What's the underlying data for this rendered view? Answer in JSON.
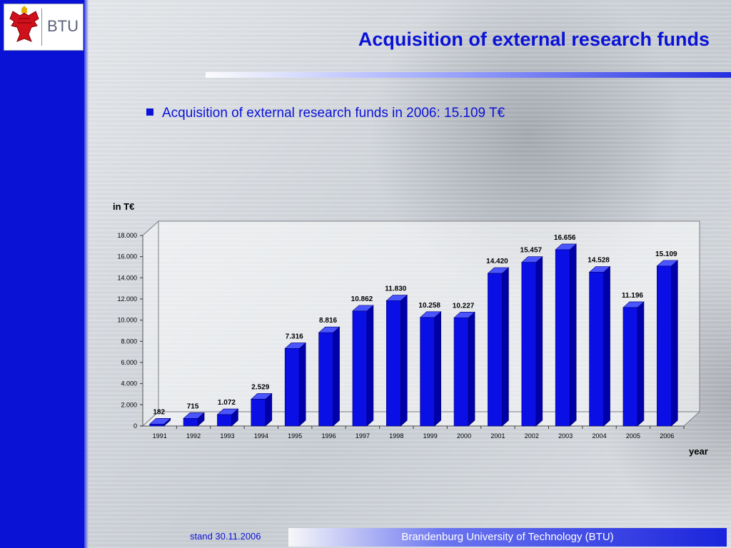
{
  "slide": {
    "title": "Acquisition of external research funds",
    "bullet": "Acquisition of external research funds in 2006: 15.109 T€",
    "logo_text": "BTU",
    "footer_date": "stand 30.11.2006",
    "footer_text": "Brandenburg University of Technology (BTU)"
  },
  "colors": {
    "accent": "#0a12d6",
    "bar_front": "#0a0fe6",
    "bar_side": "#0000a8",
    "bar_top": "#4a55ff"
  },
  "icons": {
    "logo": "brandenburg-eagle-icon",
    "bullet": "square-bullet-icon"
  },
  "chart_data": {
    "type": "bar",
    "ylabel": "in T€",
    "xlabel": "year",
    "ylim": [
      0,
      18000
    ],
    "y_ticks": [
      "0",
      "2.000",
      "4.000",
      "6.000",
      "8.000",
      "10.000",
      "12.000",
      "14.000",
      "16.000",
      "18.000"
    ],
    "y_tick_values": [
      0,
      2000,
      4000,
      6000,
      8000,
      10000,
      12000,
      14000,
      16000,
      18000
    ],
    "categories": [
      "1991",
      "1992",
      "1993",
      "1994",
      "1995",
      "1996",
      "1997",
      "1998",
      "1999",
      "2000",
      "2001",
      "2002",
      "2003",
      "2004",
      "2005",
      "2006"
    ],
    "values": [
      182,
      715,
      1072,
      2529,
      7316,
      8816,
      10862,
      11830,
      10258,
      10227,
      14420,
      15457,
      16656,
      14528,
      11196,
      15109
    ],
    "value_labels": [
      "182",
      "715",
      "1.072",
      "2.529",
      "7.316",
      "8.816",
      "10.862",
      "11.830",
      "10.258",
      "10.227",
      "14.420",
      "15.457",
      "16.656",
      "14.528",
      "11.196",
      "15.109"
    ],
    "grid": false,
    "legend": "none"
  }
}
